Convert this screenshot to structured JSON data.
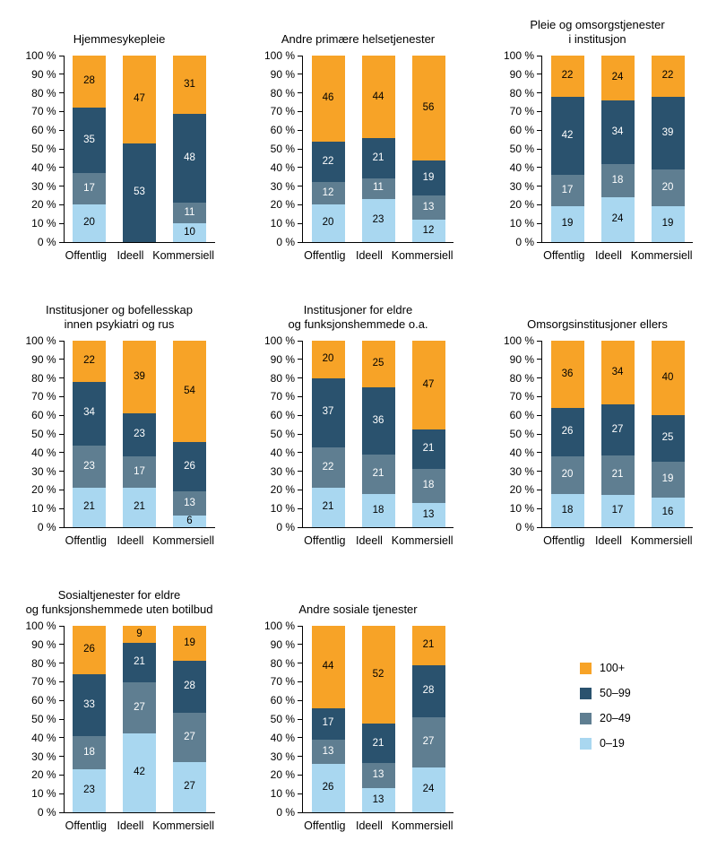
{
  "y_axis": {
    "min": 0,
    "max": 100,
    "labels": [
      "0 %",
      "10 %",
      "20 %",
      "30 %",
      "40 %",
      "50 %",
      "60 %",
      "70 %",
      "80 %",
      "90 %",
      "100 %"
    ]
  },
  "series_styles": {
    "0–19": {
      "color": "#A9D7F0",
      "text_color": "#000000"
    },
    "20–49": {
      "color": "#5F7E91",
      "text_color": "#FFFFFF"
    },
    "50–99": {
      "color": "#2A526E",
      "text_color": "#FFFFFF"
    },
    "100+": {
      "color": "#F7A327",
      "text_color": "#000000"
    }
  },
  "legend": {
    "items": [
      {
        "label": "100+",
        "color": "#F7A327"
      },
      {
        "label": "50–99",
        "color": "#2A526E"
      },
      {
        "label": "20–49",
        "color": "#5F7E91"
      },
      {
        "label": "0–19",
        "color": "#A9D7F0"
      }
    ]
  },
  "chart_data": [
    {
      "type": "bar",
      "stacking": "percent",
      "title": "Hjemmesykepleie",
      "ylim": [
        0,
        100
      ],
      "categories": [
        "Offentlig",
        "Ideell",
        "Kommersiell"
      ],
      "series": [
        {
          "name": "0–19",
          "values": [
            20,
            0,
            10
          ]
        },
        {
          "name": "20–49",
          "values": [
            17,
            0,
            11
          ]
        },
        {
          "name": "50–99",
          "values": [
            35,
            53,
            48
          ]
        },
        {
          "name": "100+",
          "values": [
            28,
            47,
            31
          ]
        }
      ]
    },
    {
      "type": "bar",
      "stacking": "percent",
      "title": "Andre primære helsetjenester",
      "ylim": [
        0,
        100
      ],
      "categories": [
        "Offentlig",
        "Ideell",
        "Kommersiell"
      ],
      "series": [
        {
          "name": "0–19",
          "values": [
            20,
            23,
            12
          ]
        },
        {
          "name": "20–49",
          "values": [
            12,
            11,
            13
          ]
        },
        {
          "name": "50–99",
          "values": [
            22,
            21,
            19
          ]
        },
        {
          "name": "100+",
          "values": [
            46,
            44,
            56
          ]
        }
      ]
    },
    {
      "type": "bar",
      "stacking": "percent",
      "title": "Pleie og omsorgstjenester\ni institusjon",
      "ylim": [
        0,
        100
      ],
      "categories": [
        "Offentlig",
        "Ideell",
        "Kommersiell"
      ],
      "series": [
        {
          "name": "0–19",
          "values": [
            19,
            24,
            19
          ]
        },
        {
          "name": "20–49",
          "values": [
            17,
            18,
            20
          ]
        },
        {
          "name": "50–99",
          "values": [
            42,
            34,
            39
          ]
        },
        {
          "name": "100+",
          "values": [
            22,
            24,
            22
          ]
        }
      ]
    },
    {
      "type": "bar",
      "stacking": "percent",
      "title": "Institusjoner og bofellesskap\ninnen psykiatri og rus",
      "ylim": [
        0,
        100
      ],
      "categories": [
        "Offentlig",
        "Ideell",
        "Kommersiell"
      ],
      "series": [
        {
          "name": "0–19",
          "values": [
            21,
            21,
            6
          ]
        },
        {
          "name": "20–49",
          "values": [
            23,
            17,
            13
          ]
        },
        {
          "name": "50–99",
          "values": [
            34,
            23,
            26
          ]
        },
        {
          "name": "100+",
          "values": [
            22,
            39,
            54
          ]
        }
      ]
    },
    {
      "type": "bar",
      "stacking": "percent",
      "title": "Institusjoner for eldre\nog funksjonshemmede o.a.",
      "ylim": [
        0,
        100
      ],
      "categories": [
        "Offentlig",
        "Ideell",
        "Kommersiell"
      ],
      "series": [
        {
          "name": "0–19",
          "values": [
            21,
            18,
            13
          ]
        },
        {
          "name": "20–49",
          "values": [
            22,
            21,
            18
          ]
        },
        {
          "name": "50–99",
          "values": [
            37,
            36,
            21
          ]
        },
        {
          "name": "100+",
          "values": [
            20,
            25,
            47
          ]
        }
      ]
    },
    {
      "type": "bar",
      "stacking": "percent",
      "title": "Omsorgsinstitusjoner ellers",
      "ylim": [
        0,
        100
      ],
      "categories": [
        "Offentlig",
        "Ideell",
        "Kommersiell"
      ],
      "series": [
        {
          "name": "0–19",
          "values": [
            18,
            17,
            16
          ]
        },
        {
          "name": "20–49",
          "values": [
            20,
            21,
            19
          ]
        },
        {
          "name": "50–99",
          "values": [
            26,
            27,
            25
          ]
        },
        {
          "name": "100+",
          "values": [
            36,
            34,
            40
          ]
        }
      ]
    },
    {
      "type": "bar",
      "stacking": "percent",
      "title": "Sosialtjenester for eldre\nog funksjonshemmede uten botilbud",
      "ylim": [
        0,
        100
      ],
      "categories": [
        "Offentlig",
        "Ideell",
        "Kommersiell"
      ],
      "series": [
        {
          "name": "0–19",
          "values": [
            23,
            42,
            27
          ]
        },
        {
          "name": "20–49",
          "values": [
            18,
            27,
            27
          ]
        },
        {
          "name": "50–99",
          "values": [
            33,
            21,
            28
          ]
        },
        {
          "name": "100+",
          "values": [
            26,
            9,
            19
          ]
        }
      ]
    },
    {
      "type": "bar",
      "stacking": "percent",
      "title": "Andre sosiale tjenester",
      "ylim": [
        0,
        100
      ],
      "categories": [
        "Offentlig",
        "Ideell",
        "Kommersiell"
      ],
      "series": [
        {
          "name": "0–19",
          "values": [
            26,
            13,
            24
          ]
        },
        {
          "name": "20–49",
          "values": [
            13,
            13,
            27
          ]
        },
        {
          "name": "50–99",
          "values": [
            17,
            21,
            28
          ]
        },
        {
          "name": "100+",
          "values": [
            44,
            52,
            21
          ]
        }
      ]
    }
  ]
}
